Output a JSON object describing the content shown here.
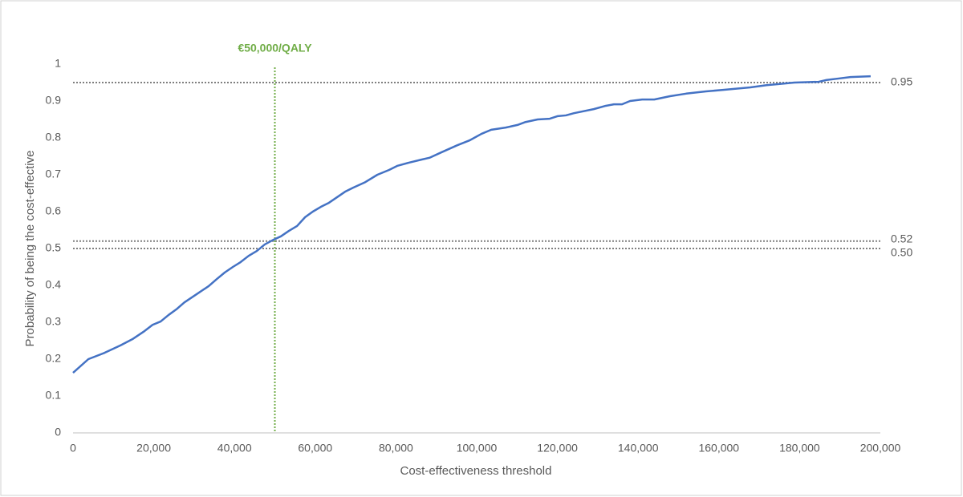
{
  "chart_data": {
    "type": "line",
    "x_label": "Cost-effectiveness threshold",
    "y_label": "Probability of being the cost-effective",
    "x": [
      0,
      3800,
      7800,
      11700,
      14700,
      17700,
      19700,
      21700,
      23700,
      25600,
      27600,
      30600,
      33600,
      35600,
      37600,
      39600,
      41500,
      43500,
      45500,
      47500,
      49700,
      51500,
      53500,
      55500,
      57500,
      59400,
      61400,
      63400,
      65400,
      67400,
      69400,
      72400,
      75400,
      78300,
      80300,
      83300,
      86300,
      88300,
      91300,
      95200,
      98200,
      101200,
      103600,
      107200,
      110100,
      112100,
      115100,
      118100,
      120100,
      122100,
      124100,
      129000,
      132000,
      134000,
      136000,
      138000,
      141000,
      144000,
      147900,
      151900,
      156800,
      160800,
      167800,
      171800,
      174800,
      178700,
      184700,
      186700,
      189700,
      192600,
      197600
    ],
    "series": [
      {
        "color": "#4472c4",
        "values": [
          0.163,
          0.2,
          0.217,
          0.237,
          0.254,
          0.276,
          0.293,
          0.302,
          0.32,
          0.335,
          0.354,
          0.376,
          0.398,
          0.417,
          0.435,
          0.45,
          0.463,
          0.48,
          0.493,
          0.511,
          0.524,
          0.533,
          0.548,
          0.561,
          0.585,
          0.6,
          0.613,
          0.624,
          0.639,
          0.654,
          0.665,
          0.68,
          0.7,
          0.713,
          0.724,
          0.733,
          0.741,
          0.746,
          0.761,
          0.78,
          0.793,
          0.811,
          0.822,
          0.828,
          0.835,
          0.843,
          0.85,
          0.852,
          0.859,
          0.861,
          0.867,
          0.878,
          0.887,
          0.891,
          0.891,
          0.9,
          0.904,
          0.904,
          0.913,
          0.92,
          0.926,
          0.93,
          0.937,
          0.943,
          0.946,
          0.95,
          0.952,
          0.957,
          0.961,
          0.965,
          0.967
        ]
      }
    ],
    "xlim": [
      0,
      200000
    ],
    "xticks": [
      0,
      {
        "value": 20000,
        "label": "20,000"
      },
      {
        "value": 40000,
        "label": "40,000"
      },
      {
        "value": 60000,
        "label": "60,000"
      },
      {
        "value": 80000,
        "label": "80,000"
      },
      {
        "value": 100000,
        "label": "100,000"
      },
      {
        "value": 120000,
        "label": "120,000"
      },
      {
        "value": 140000,
        "label": "140,000"
      },
      {
        "value": 160000,
        "label": "160,000"
      },
      {
        "value": 180000,
        "label": "180,000"
      },
      {
        "value": 200000,
        "label": "200,000"
      }
    ],
    "ylim": [
      0,
      1
    ],
    "yticks": [
      0,
      0.1,
      0.2,
      0.3,
      0.4,
      0.5,
      0.6,
      0.7,
      0.8,
      0.9,
      1
    ],
    "grid": false,
    "hlines": [
      0.95,
      0.52,
      {
        "value": 0.5,
        "label": "0.50"
      }
    ],
    "hline_color": "#7f7f7f",
    "vline": {
      "value": 50000,
      "label": "€50,000/QALY",
      "color": "#70ad47"
    }
  }
}
